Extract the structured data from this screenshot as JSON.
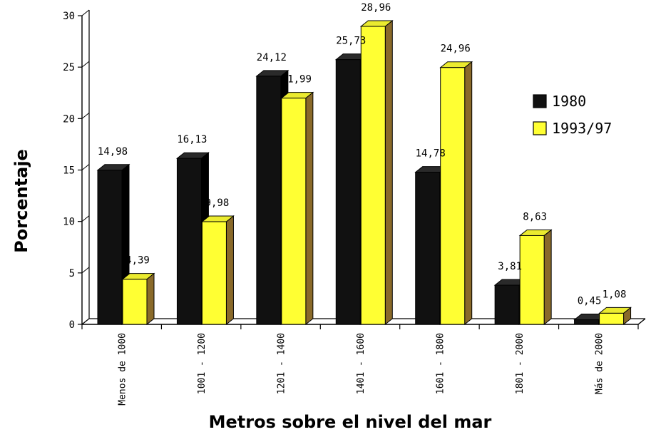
{
  "chart_data": {
    "type": "bar",
    "title": "",
    "xlabel": "Metros sobre el nivel del mar",
    "ylabel": "Porcentaje",
    "ylim": [
      0,
      30
    ],
    "yticks": [
      0,
      5,
      10,
      15,
      20,
      25,
      30
    ],
    "grid": false,
    "three_d": true,
    "legend_position": "right",
    "categories": [
      "Menos de 1000",
      "1001 - 1200",
      "1201 - 1400",
      "1401 - 1600",
      "1601 - 1800",
      "1801 - 2000",
      "Más de 2000"
    ],
    "series": [
      {
        "name": "1980",
        "color": "#111111",
        "values": [
          14.98,
          16.13,
          24.12,
          25.73,
          14.78,
          3.81,
          0.45
        ],
        "labels": [
          "14,98",
          "16,13",
          "24,12",
          "25,73",
          "14,78",
          "3,81",
          "0,45"
        ]
      },
      {
        "name": "1993/97",
        "color": "#ffff33",
        "values": [
          4.39,
          9.98,
          21.99,
          28.96,
          24.96,
          8.63,
          1.08
        ],
        "labels": [
          "4,39",
          "9,98",
          "21,99",
          "28,96",
          "24,96",
          "8,63",
          "1,08"
        ]
      }
    ]
  }
}
